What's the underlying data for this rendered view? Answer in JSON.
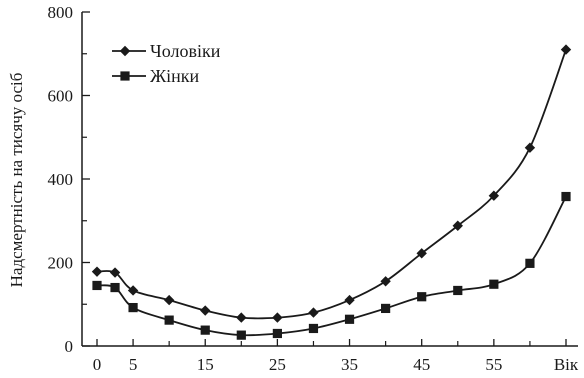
{
  "chart_data": {
    "type": "line",
    "xlabel": "Вік",
    "ylabel": "Надсмертність на тисячу осіб",
    "x": [
      0,
      2.5,
      5,
      10,
      15,
      20,
      25,
      30,
      35,
      40,
      45,
      50,
      55,
      60,
      65
    ],
    "x_ticks": [
      {
        "value": 0,
        "label": "0"
      },
      {
        "value": 5,
        "label": "5"
      },
      {
        "value": 15,
        "label": "15"
      },
      {
        "value": 25,
        "label": "25"
      },
      {
        "value": 35,
        "label": "35"
      },
      {
        "value": 45,
        "label": "45"
      },
      {
        "value": 55,
        "label": "55"
      },
      {
        "value": 65,
        "label": "Вік"
      }
    ],
    "xlim": [
      0,
      65
    ],
    "ylim": [
      0,
      800
    ],
    "y_ticks": [
      0,
      200,
      400,
      600,
      800
    ],
    "grid": false,
    "legend_position": "top-left",
    "series": [
      {
        "name": "Чоловіки",
        "marker": "diamond",
        "values": [
          178,
          176,
          133,
          110,
          85,
          68,
          68,
          80,
          110,
          155,
          222,
          288,
          360,
          475,
          710
        ]
      },
      {
        "name": "Жінки",
        "marker": "square",
        "values": [
          145,
          140,
          92,
          62,
          38,
          26,
          30,
          42,
          64,
          90,
          118,
          133,
          148,
          198,
          358
        ]
      }
    ]
  }
}
